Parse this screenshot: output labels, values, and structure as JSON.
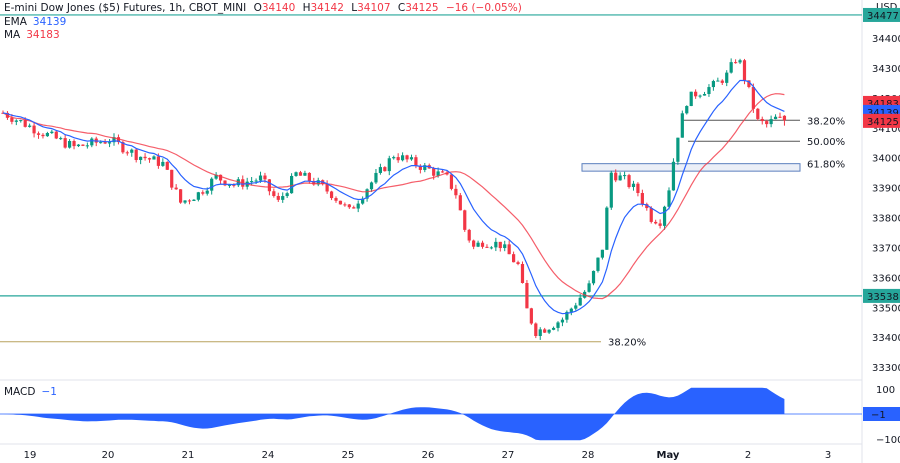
{
  "header": {
    "symbol": "E-mini Dow Jones ($5) Futures, 1h, CBOT_MINI",
    "o_label": "O",
    "o_value": "34140",
    "h_label": "H",
    "h_value": "34142",
    "l_label": "L",
    "l_value": "34107",
    "c_label": "C",
    "c_value": "34125",
    "change": "−16 (−0.05%)"
  },
  "legend": {
    "ema_label": "EMA",
    "ema_value": "34139",
    "ma_label": "MA",
    "ma_value": "34183",
    "macd_label": "MACD",
    "macd_value": "−1"
  },
  "colors": {
    "up": "#089981",
    "down": "#f23645",
    "ema": "#2962ff",
    "ma": "#f23645",
    "macd": "#2962ff",
    "level_line": "#26a69a",
    "fib_gold": "#b8a25e",
    "fib_box": "#5b7fbe"
  },
  "chart_data": {
    "type": "candlestick",
    "currency": "USD",
    "y_ticks": [
      "34400",
      "34300",
      "34200",
      "34100",
      "34000",
      "33900",
      "33800",
      "33700",
      "33600",
      "33500",
      "33400",
      "33300"
    ],
    "y_range": [
      33260,
      34470
    ],
    "x_ticks": [
      "19",
      "20",
      "21",
      "24",
      "25",
      "26",
      "27",
      "28",
      "May",
      "2",
      "3"
    ],
    "price_tags": {
      "ma": "34183",
      "ema": "34139",
      "last": "34125",
      "support": "33538",
      "top": "34477"
    },
    "levels": {
      "support": 33538,
      "top_line": 34477
    },
    "fib_upper": [
      {
        "label": "38.20%",
        "price": 34125
      },
      {
        "label": "50.00%",
        "price": 34055
      },
      {
        "label": "61.80%",
        "price": 33980
      }
    ],
    "fib_lower": {
      "label": "38.20%",
      "price": 33385
    },
    "macd_ticks": [
      "100",
      "−100"
    ],
    "macd_value_tag": "−1",
    "macd_range": [
      -110,
      110
    ],
    "anchors": [
      [
        0,
        34150
      ],
      [
        8,
        34090
      ],
      [
        16,
        34035
      ],
      [
        24,
        34060
      ],
      [
        30,
        34010
      ],
      [
        36,
        33980
      ],
      [
        40,
        33850
      ],
      [
        44,
        33880
      ],
      [
        48,
        33935
      ],
      [
        52,
        33910
      ],
      [
        58,
        33930
      ],
      [
        62,
        33850
      ],
      [
        66,
        33945
      ],
      [
        70,
        33920
      ],
      [
        74,
        33880
      ],
      [
        78,
        33820
      ],
      [
        82,
        33900
      ],
      [
        86,
        33970
      ],
      [
        88,
        34010
      ],
      [
        92,
        33985
      ],
      [
        96,
        33960
      ],
      [
        100,
        33930
      ],
      [
        102,
        33880
      ],
      [
        104,
        33760
      ],
      [
        106,
        33700
      ],
      [
        108,
        33720
      ],
      [
        112,
        33710
      ],
      [
        116,
        33640
      ],
      [
        118,
        33490
      ],
      [
        120,
        33420
      ],
      [
        122,
        33430
      ],
      [
        126,
        33460
      ],
      [
        129,
        33515
      ],
      [
        132,
        33570
      ],
      [
        135,
        33700
      ],
      [
        137,
        33950
      ],
      [
        140,
        33925
      ],
      [
        143,
        33885
      ],
      [
        146,
        33800
      ],
      [
        148,
        33790
      ],
      [
        150,
        33900
      ],
      [
        152,
        34080
      ],
      [
        154,
        34190
      ],
      [
        156,
        34215
      ],
      [
        160,
        34240
      ],
      [
        163,
        34275
      ],
      [
        165,
        34330
      ],
      [
        166,
        34315
      ],
      [
        168,
        34220
      ],
      [
        170,
        34120
      ],
      [
        172,
        34110
      ],
      [
        174,
        34130
      ],
      [
        176,
        34118
      ]
    ]
  }
}
